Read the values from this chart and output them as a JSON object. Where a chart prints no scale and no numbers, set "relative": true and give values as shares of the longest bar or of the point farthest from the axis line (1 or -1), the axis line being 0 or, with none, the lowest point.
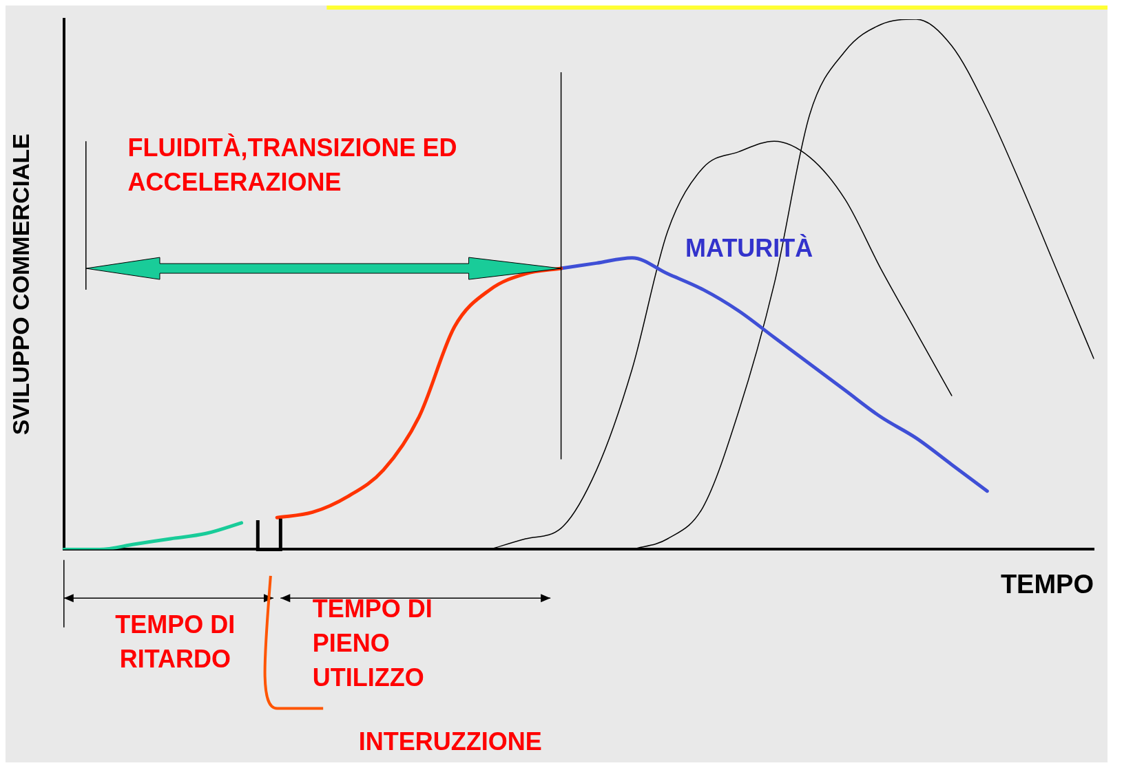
{
  "chart_data": {
    "type": "line",
    "relative": true,
    "marker": "none",
    "xlabel": "TEMPO",
    "ylabel": "SVILUPPO COMMERCIALE",
    "categories": [
      null,
      null,
      null,
      null,
      null,
      null,
      null,
      null,
      null,
      null,
      null,
      null,
      null,
      null,
      null,
      null,
      null,
      null,
      null,
      null,
      null,
      null,
      null,
      null,
      null,
      null,
      null,
      null,
      null,
      null
    ],
    "series": [
      {
        "color": "#19cc99",
        "values": [
          0,
          0,
          0.01,
          0.02,
          0.03,
          0.05,
          null,
          null,
          null,
          null,
          null,
          null,
          null,
          null,
          null,
          null,
          null,
          null,
          null,
          null,
          null,
          null,
          null,
          null,
          null,
          null,
          null,
          null,
          null,
          null
        ]
      },
      {
        "color": "#ff3300",
        "values": [
          null,
          null,
          null,
          null,
          null,
          null,
          0.06,
          0.07,
          0.1,
          0.15,
          0.25,
          0.42,
          0.49,
          0.52,
          0.53,
          null,
          null,
          null,
          null,
          null,
          null,
          null,
          null,
          null,
          null,
          null,
          null,
          null,
          null,
          null
        ]
      },
      {
        "color": "#3f4fd6",
        "values": [
          null,
          null,
          null,
          null,
          null,
          null,
          null,
          null,
          null,
          null,
          null,
          null,
          null,
          null,
          0.53,
          0.54,
          0.55,
          0.52,
          0.49,
          0.45,
          0.4,
          0.35,
          0.3,
          0.25,
          0.21,
          0.16,
          0.11,
          null,
          null,
          null
        ]
      },
      {
        "color": "#000000",
        "values": [
          null,
          null,
          null,
          null,
          null,
          null,
          null,
          null,
          null,
          null,
          null,
          null,
          0,
          0.02,
          0.04,
          0.15,
          0.34,
          0.6,
          0.72,
          0.75,
          0.77,
          0.74,
          0.66,
          0.53,
          0.41,
          0.29,
          null,
          null,
          null,
          null
        ]
      },
      {
        "color": "#000000",
        "values": [
          null,
          null,
          null,
          null,
          null,
          null,
          null,
          null,
          null,
          null,
          null,
          null,
          null,
          null,
          null,
          null,
          0,
          0.02,
          0.08,
          0.26,
          0.5,
          0.82,
          0.94,
          0.99,
          1,
          0.95,
          0.83,
          0.68,
          0.52,
          0.36
        ]
      }
    ],
    "annotations": [
      "FLUIDITÀ,TRANSIZIONE ED ACCELERAZIONE",
      "MATURITÀ",
      "TEMPO DI RITARDO",
      "TEMPO DI PIENO UTILIZZO",
      "INTERUZZIONE"
    ]
  }
}
